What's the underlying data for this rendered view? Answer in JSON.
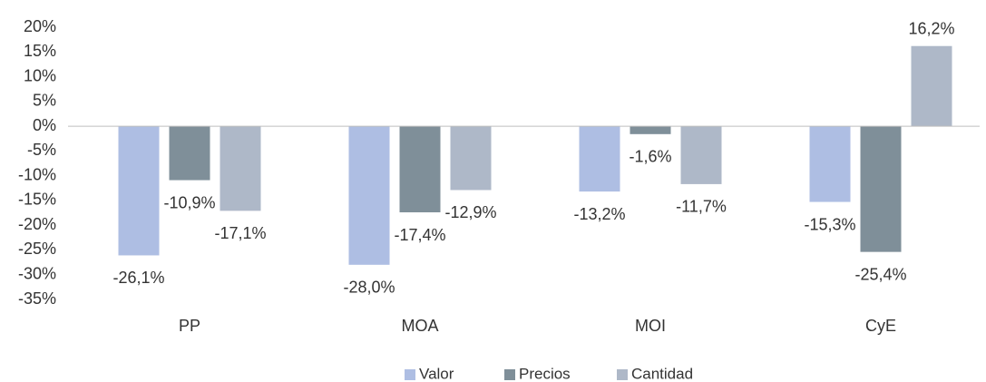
{
  "chart_data": {
    "type": "bar",
    "categories": [
      "PP",
      "MOA",
      "MOI",
      "CyE"
    ],
    "series": [
      {
        "name": "Valor",
        "color": "#aebee3",
        "values": [
          -26.1,
          -28.0,
          -13.2,
          -15.3
        ],
        "value_labels": [
          "-26,1%",
          "-28,0%",
          "-13,2%",
          "-15,3%"
        ]
      },
      {
        "name": "Precios",
        "color": "#7f8f99",
        "values": [
          -10.9,
          -17.4,
          -1.6,
          -25.4
        ],
        "value_labels": [
          "-10,9%",
          "-17,4%",
          "-1,6%",
          "-25,4%"
        ]
      },
      {
        "name": "Cantidad",
        "color": "#aeb8c8",
        "values": [
          -17.1,
          -12.9,
          -11.7,
          16.2
        ],
        "value_labels": [
          "-17,1%",
          "-12,9%",
          "-11,7%",
          "16,2%"
        ]
      }
    ],
    "ylim": [
      -35,
      20
    ],
    "yticks": [
      {
        "value": 20,
        "label": "20%"
      },
      {
        "value": 15,
        "label": "15%"
      },
      {
        "value": 10,
        "label": "10%"
      },
      {
        "value": 5,
        "label": "5%"
      },
      {
        "value": 0,
        "label": "0%"
      },
      {
        "value": -5,
        "label": "-5%"
      },
      {
        "value": -10,
        "label": "-10%"
      },
      {
        "value": -15,
        "label": "-15%"
      },
      {
        "value": -20,
        "label": "-20%"
      },
      {
        "value": -25,
        "label": "-25%"
      },
      {
        "value": -30,
        "label": "-30%"
      },
      {
        "value": -35,
        "label": "-35%"
      }
    ],
    "grid": false,
    "legend": "bottom"
  }
}
